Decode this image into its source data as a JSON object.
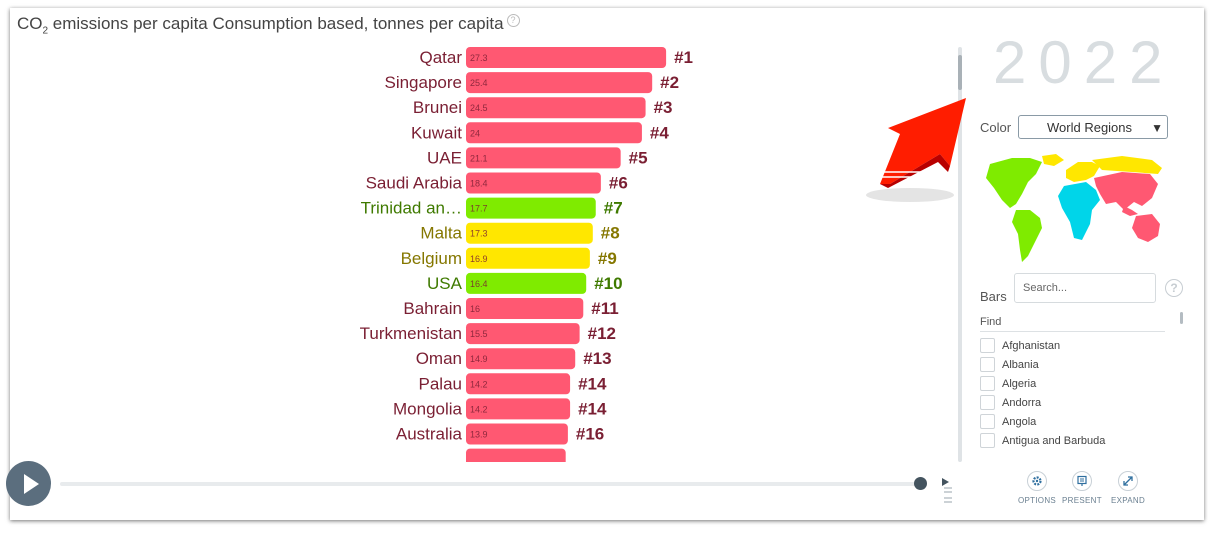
{
  "header": {
    "title_prefix": "CO",
    "title_sub": "2",
    "title_rest": " emissions per capita Consumption based, tonnes per capita",
    "help": "?"
  },
  "chart_data": {
    "type": "bar",
    "orientation": "horizontal",
    "year": "2022",
    "region_colors": {
      "Asia": "#ff5872",
      "Americas": "#7feb00",
      "Europe": "#ffe700",
      "Africa": "#00d5e9"
    },
    "rows": [
      {
        "name": "Qatar",
        "value": 27.3,
        "label": "27.3",
        "rank": "#1",
        "region": "Asia"
      },
      {
        "name": "Singapore",
        "value": 25.4,
        "label": "25.4",
        "rank": "#2",
        "region": "Asia"
      },
      {
        "name": "Brunei",
        "value": 24.5,
        "label": "24.5",
        "rank": "#3",
        "region": "Asia"
      },
      {
        "name": "Kuwait",
        "value": 24,
        "label": "24",
        "rank": "#4",
        "region": "Asia"
      },
      {
        "name": "UAE",
        "value": 21.1,
        "label": "21.1",
        "rank": "#5",
        "region": "Asia"
      },
      {
        "name": "Saudi Arabia",
        "value": 18.4,
        "label": "18.4",
        "rank": "#6",
        "region": "Asia"
      },
      {
        "name": "Trinidad an…",
        "value": 17.7,
        "label": "17.7",
        "rank": "#7",
        "region": "Americas"
      },
      {
        "name": "Malta",
        "value": 17.3,
        "label": "17.3",
        "rank": "#8",
        "region": "Europe"
      },
      {
        "name": "Belgium",
        "value": 16.9,
        "label": "16.9",
        "rank": "#9",
        "region": "Europe"
      },
      {
        "name": "USA",
        "value": 16.4,
        "label": "16.4",
        "rank": "#10",
        "region": "Americas"
      },
      {
        "name": "Bahrain",
        "value": 16,
        "label": "16",
        "rank": "#11",
        "region": "Asia"
      },
      {
        "name": "Turkmenistan",
        "value": 15.5,
        "label": "15.5",
        "rank": "#12",
        "region": "Asia"
      },
      {
        "name": "Oman",
        "value": 14.9,
        "label": "14.9",
        "rank": "#13",
        "region": "Asia"
      },
      {
        "name": "Palau",
        "value": 14.2,
        "label": "14.2",
        "rank": "#14",
        "region": "Asia"
      },
      {
        "name": "Mongolia",
        "value": 14.2,
        "label": "14.2",
        "rank": "#14",
        "region": "Asia"
      },
      {
        "name": "Australia",
        "value": 13.9,
        "label": "13.9",
        "rank": "#16",
        "region": "Asia"
      }
    ]
  },
  "sidebar": {
    "year": "2022",
    "color_label": "Color",
    "color_select": "World Regions",
    "bars_label": "Bars",
    "search_placeholder": "Search...",
    "help": "?",
    "find_label": "Find",
    "countries": [
      "Afghanistan",
      "Albania",
      "Algeria",
      "Andorra",
      "Angola",
      "Antigua and Barbuda"
    ]
  },
  "footer": {
    "options": "OPTIONS",
    "present": "PRESENT",
    "expand": "EXPAND"
  }
}
